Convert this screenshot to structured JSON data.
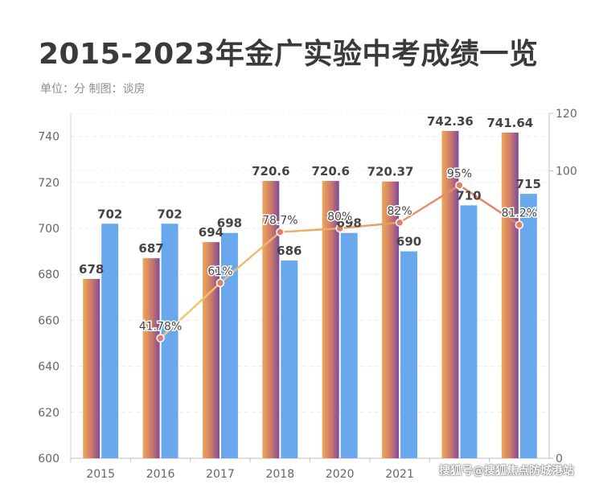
{
  "header": {
    "title": "2015-2023年金广实验中考成绩一览",
    "subtitle": "单位：分 制图：谈房"
  },
  "watermark": "搜狐号@搜狐焦点防城港站",
  "colors": {
    "bar_grad_start": "#f0a75a",
    "bar_grad_mid": "#c9786a",
    "bar_grad_end": "#7d4a9e",
    "bar_blue": "#6aa8ee",
    "line_start": "#f2cf6e",
    "line_end": "#e07d6c",
    "axis_text": "#666666",
    "value_text": "#444444"
  },
  "chart_data": {
    "type": "bar",
    "title": "2015-2023年金广实验中考成绩一览",
    "categories": [
      "2015",
      "2016",
      "2017",
      "2018",
      "2020",
      "2021",
      "",
      ""
    ],
    "series": [
      {
        "name": "series-a (gradient)",
        "axis": "left",
        "values": [
          678,
          687,
          694,
          720.6,
          720.6,
          720.37,
          742.36,
          741.64
        ],
        "labels": [
          "678",
          "687",
          "694",
          "720.6",
          "720.6",
          "720.37",
          "742.36",
          "741.64"
        ]
      },
      {
        "name": "series-b (blue)",
        "axis": "left",
        "values": [
          702,
          702,
          698,
          686,
          698,
          690,
          710,
          715
        ],
        "labels": [
          "702",
          "702",
          "698",
          "686",
          "698",
          "690",
          "710",
          "715"
        ]
      },
      {
        "name": "rate (line)",
        "type": "line",
        "axis": "right",
        "values": [
          null,
          41.78,
          61,
          78.7,
          80,
          82,
          95,
          81.2
        ],
        "labels": [
          "",
          "41.78%",
          "61%",
          "78.7%",
          "80%",
          "82%",
          "95%",
          "81.2%"
        ]
      }
    ],
    "ylim": [
      600,
      750
    ],
    "yticks": [
      "600",
      "620",
      "640",
      "660",
      "680",
      "700",
      "720",
      "740"
    ],
    "y2lim": [
      0,
      120
    ],
    "y2ticks": [
      "0",
      "100",
      "120"
    ],
    "grid": true,
    "legend": "none"
  }
}
